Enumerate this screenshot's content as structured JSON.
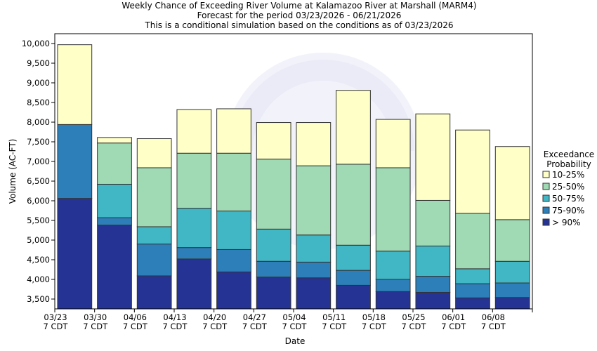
{
  "chart_data": {
    "type": "bar",
    "stacked": true,
    "title_lines": [
      "Weekly Chance of Exceeding River Volume at Kalamazoo River at Marshall (MARM4)",
      "Forecast for the period 03/23/2026 - 06/21/2026",
      "This is a conditional simulation based on the conditions as of 03/23/2026"
    ],
    "xlabel": "Date",
    "ylabel": "Volume (AC-FT)",
    "ylim": [
      3250,
      10250
    ],
    "yticks": [
      3500,
      4000,
      4500,
      5000,
      5500,
      6000,
      6500,
      7000,
      7500,
      8000,
      8500,
      9000,
      9500,
      10000
    ],
    "ytick_labels": [
      "3,500",
      "4,000",
      "4,500",
      "5,000",
      "5,500",
      "6,000",
      "6,500",
      "7,000",
      "7,500",
      "8,000",
      "8,500",
      "9,000",
      "9,500",
      "10,000"
    ],
    "xticks": [
      {
        "date": "03/23",
        "sub": "7 CDT"
      },
      {
        "date": "03/30",
        "sub": "7 CDT"
      },
      {
        "date": "04/06",
        "sub": "7 CDT"
      },
      {
        "date": "04/13",
        "sub": "7 CDT"
      },
      {
        "date": "04/20",
        "sub": "7 CDT"
      },
      {
        "date": "04/27",
        "sub": "7 CDT"
      },
      {
        "date": "05/04",
        "sub": "7 CDT"
      },
      {
        "date": "05/11",
        "sub": "7 CDT"
      },
      {
        "date": "05/18",
        "sub": "7 CDT"
      },
      {
        "date": "05/25",
        "sub": "7 CDT"
      },
      {
        "date": "06/01",
        "sub": "7 CDT"
      },
      {
        "date": "06/08",
        "sub": "7 CDT"
      }
    ],
    "legend_title": [
      "Exceedance",
      "Probability"
    ],
    "legend_position": "right",
    "series": [
      {
        "name": "10-25%",
        "color": "#ffffc8"
      },
      {
        "name": "25-50%",
        "color": "#a0dab4"
      },
      {
        "name": "50-75%",
        "color": "#41b6c4"
      },
      {
        "name": "75-90%",
        "color": "#2c7fb8"
      },
      {
        "name": "> 90%",
        "color": "#253494"
      }
    ],
    "weeks": [
      {
        "week": "03/23",
        "gt90": 6060,
        "p75_90": 7940,
        "p50_75": 7940,
        "p25_50": 7940,
        "p10_25": 9970
      },
      {
        "week": "03/30",
        "gt90": 5380,
        "p75_90": 5570,
        "p50_75": 6420,
        "p25_50": 7470,
        "p10_25": 7610
      },
      {
        "week": "04/06",
        "gt90": 4090,
        "p75_90": 4900,
        "p50_75": 5340,
        "p25_50": 6840,
        "p10_25": 7580
      },
      {
        "week": "04/13",
        "gt90": 4520,
        "p75_90": 4810,
        "p50_75": 5810,
        "p25_50": 7210,
        "p10_25": 8320
      },
      {
        "week": "04/20",
        "gt90": 4190,
        "p75_90": 4760,
        "p50_75": 5740,
        "p25_50": 7210,
        "p10_25": 8340
      },
      {
        "week": "04/27",
        "gt90": 4060,
        "p75_90": 4460,
        "p50_75": 5280,
        "p25_50": 7060,
        "p10_25": 7990
      },
      {
        "week": "05/04",
        "gt90": 4040,
        "p75_90": 4440,
        "p50_75": 5130,
        "p25_50": 6890,
        "p10_25": 7990
      },
      {
        "week": "05/11",
        "gt90": 3850,
        "p75_90": 4230,
        "p50_75": 4870,
        "p25_50": 6930,
        "p10_25": 8810
      },
      {
        "week": "05/18",
        "gt90": 3690,
        "p75_90": 4000,
        "p50_75": 4720,
        "p25_50": 6840,
        "p10_25": 8070
      },
      {
        "week": "05/25",
        "gt90": 3670,
        "p75_90": 4080,
        "p50_75": 4850,
        "p25_50": 6010,
        "p10_25": 8210
      },
      {
        "week": "06/01",
        "gt90": 3530,
        "p75_90": 3890,
        "p50_75": 4270,
        "p25_50": 5680,
        "p10_25": 7800
      },
      {
        "week": "06/08",
        "gt90": 3540,
        "p75_90": 3910,
        "p50_75": 4460,
        "p25_50": 5520,
        "p10_25": 7380
      }
    ]
  }
}
